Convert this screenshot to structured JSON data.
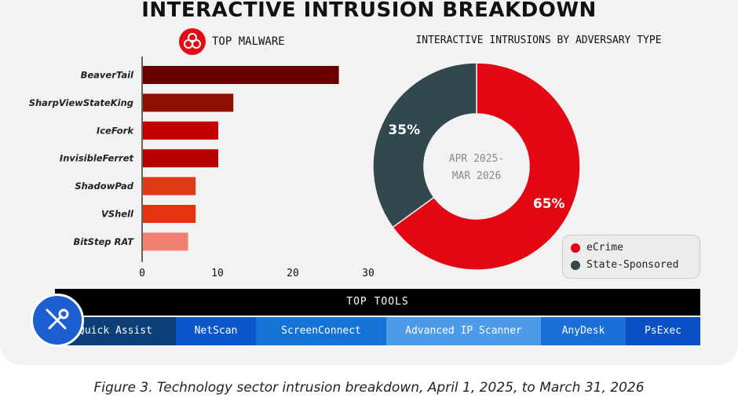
{
  "title": "INTERACTIVE INTRUSION BREAKDOWN",
  "caption": "Figure 3. Technology sector intrusion breakdown, April 1, 2025, to March 31, 2026",
  "colors": {
    "ecrime": "#e30613",
    "state": "#33474f",
    "tools_band": "#000000"
  },
  "icons": {
    "malware": "biohazard-icon",
    "tools": "wrench-screwdriver-icon"
  },
  "chart_data": [
    {
      "type": "bar",
      "orientation": "horizontal",
      "title": "TOP MALWARE",
      "categories": [
        "BeaverTail",
        "SharpViewStateKing",
        "IceFork",
        "InvisibleFerret",
        "ShadowPad",
        "VShell",
        "BitStep RAT"
      ],
      "values": [
        26,
        12,
        10,
        10,
        7,
        7,
        6
      ],
      "colors": [
        "#6b0000",
        "#8e0e00",
        "#c50000",
        "#b80000",
        "#e03a14",
        "#e4330e",
        "#f08070"
      ],
      "xlim": [
        0,
        30
      ],
      "xticks": [
        0,
        10,
        20,
        30
      ],
      "grid": false
    },
    {
      "type": "pie",
      "donut": true,
      "title": "INTERACTIVE INTRUSIONS BY ADVERSARY TYPE",
      "center_label": [
        "APR 2025-",
        "MAR 2026"
      ],
      "slices": [
        {
          "label": "eCrime",
          "value": 65,
          "display": "65%"
        },
        {
          "label": "State-Sponsored",
          "value": 35,
          "display": "35%"
        }
      ],
      "legend_position": "bottom-right"
    }
  ],
  "tools": {
    "title": "TOP TOOLS",
    "items": [
      {
        "label": "Quick Assist",
        "color": "#0c3e77"
      },
      {
        "label": "NetScan",
        "color": "#0b57c9"
      },
      {
        "label": "ScreenConnect",
        "color": "#1573d6"
      },
      {
        "label": "Advanced IP Scanner",
        "color": "#4b9be8"
      },
      {
        "label": "AnyDesk",
        "color": "#1a6fd6"
      },
      {
        "label": "PsExec",
        "color": "#0a50c4"
      }
    ]
  }
}
